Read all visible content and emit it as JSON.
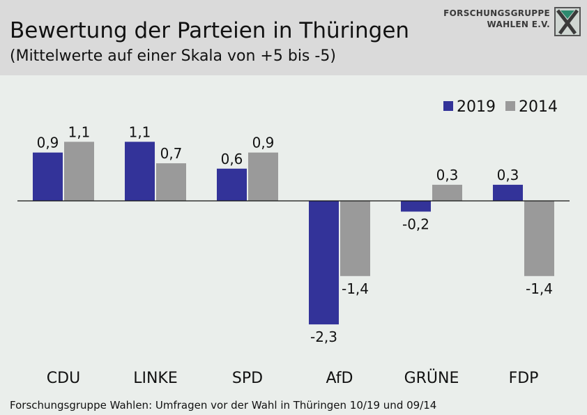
{
  "header": {
    "title": "Bewertung der Parteien in Thüringen",
    "subtitle": "(Mittelwerte auf einer Skala von +5 bis -5)"
  },
  "logo": {
    "line1": "FORSCHUNGSGRUPPE",
    "line2": "WAHLEN E.V."
  },
  "source": "Forschungsgruppe Wahlen: Umfragen vor der Wahl in Thüringen 10/19 und 09/14",
  "chart_data": {
    "type": "bar",
    "categories": [
      "CDU",
      "LINKE",
      "SPD",
      "AfD",
      "GRÜNE",
      "FDP"
    ],
    "series": [
      {
        "name": "2019",
        "color": "#333399",
        "values": [
          0.9,
          1.1,
          0.6,
          -2.3,
          -0.2,
          0.3
        ],
        "labels": [
          "0,9",
          "1,1",
          "0,6",
          "-2,3",
          "-0,2",
          "0,3"
        ]
      },
      {
        "name": "2014",
        "color": "#9a9a9a",
        "values": [
          1.1,
          0.7,
          0.9,
          -1.4,
          0.3,
          -1.4
        ],
        "labels": [
          "1,1",
          "0,7",
          "0,9",
          "-1,4",
          "0,3",
          "-1,4"
        ]
      }
    ],
    "legend_position": "top-right",
    "grid": false
  }
}
